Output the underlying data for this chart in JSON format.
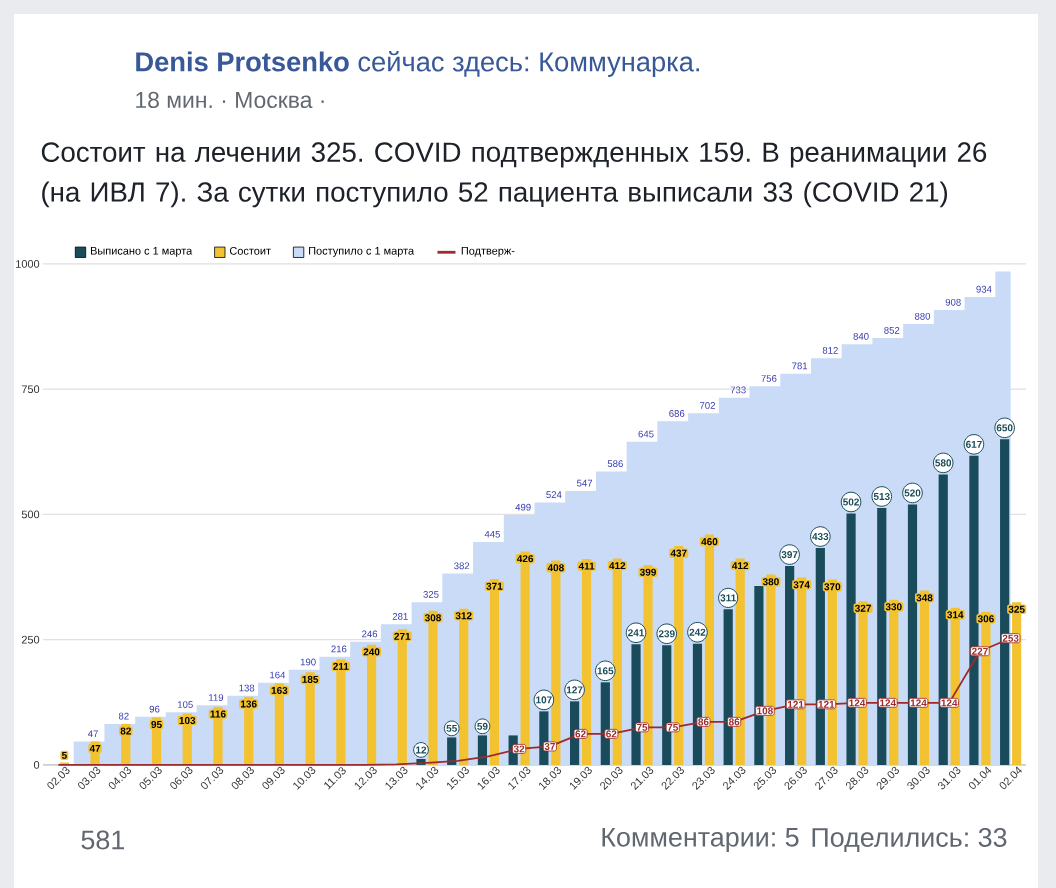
{
  "chart_data": {
    "type": "bar",
    "title": "Состоит на лечении 325. COVID подтвержденных 159. В реанимации 26 (на ИВЛ 7). За сутки поступило 52 пациента выписали 33 (COVID 21)",
    "annotations": [
      "**Denis Protsenko** сейчас здесь: Коммунарка.",
      "18 мин. · Москва ·",
      "581",
      "Комментарии: 5",
      "Поделились: 33"
    ],
    "categories": [
      "02.03",
      "03.03",
      "04.03",
      "05.03",
      "06.03",
      "07.03",
      "08.03",
      "09.03",
      "10.03",
      "11.03",
      "12.03",
      "13.03",
      "14.03",
      "15.03",
      "16.03",
      "17.03",
      "18.03",
      "19.03",
      "20.03",
      "21.03",
      "22.03",
      "23.03",
      "24.03",
      "25.03",
      "26.03",
      "27.03",
      "28.03",
      "29.03",
      "30.03",
      "31.03",
      "01.04",
      "02.04"
    ],
    "ylim": [
      0,
      1000
    ],
    "yticks": [
      0,
      250,
      500,
      750,
      1000
    ],
    "grid": "y",
    "legend": "top left",
    "series": [
      {
        "name": "Выписано с 1 марта",
        "color": "#194b5a",
        "values": [
          null,
          null,
          null,
          null,
          null,
          null,
          null,
          null,
          null,
          null,
          null,
          null,
          12,
          55,
          59,
          59,
          107,
          127,
          165,
          241,
          239,
          242,
          311,
          357,
          397,
          433,
          502,
          513,
          520,
          580,
          617,
          650
        ],
        "value_labels": [
          null,
          null,
          null,
          null,
          null,
          null,
          null,
          null,
          null,
          null,
          null,
          null,
          "12",
          "55",
          "59",
          null,
          "107",
          "127",
          "165",
          "241",
          "239",
          "242",
          "311",
          null,
          "397",
          "433",
          "502",
          "513",
          "520",
          "580",
          "617",
          "650"
        ]
      },
      {
        "name": "Состоит",
        "color": "#f2c230",
        "values": [
          5,
          47,
          82,
          95,
          103,
          116,
          136,
          163,
          185,
          211,
          240,
          271,
          308,
          312,
          371,
          426,
          408,
          411,
          412,
          399,
          437,
          460,
          412,
          380,
          374,
          370,
          327,
          330,
          348,
          314,
          306,
          325
        ],
        "value_labels": [
          "5",
          "47",
          "82",
          "95",
          "103",
          "116",
          "136",
          "163",
          "185",
          "211",
          "240",
          "271",
          "308",
          "312",
          "371",
          "426",
          "408",
          "411",
          "412",
          "399",
          "437",
          "460",
          "412",
          "380",
          "374",
          "370",
          "327",
          "330",
          "348",
          "314",
          "306",
          "325"
        ]
      },
      {
        "name": "Поступило с 1 марта",
        "type": "area",
        "color": "#c9dbf7",
        "values": [
          0,
          47,
          82,
          96,
          105,
          119,
          138,
          164,
          190,
          216,
          246,
          281,
          325,
          382,
          445,
          499,
          524,
          547,
          586,
          645,
          686,
          702,
          733,
          756,
          781,
          812,
          840,
          852,
          880,
          908,
          934,
          985
        ],
        "value_labels": [
          null,
          "47",
          "82",
          "96",
          "105",
          "119",
          "138",
          "164",
          "190",
          "216",
          "246",
          "281",
          "325",
          "382",
          "445",
          "499",
          "524",
          "547",
          "586",
          "645",
          "686",
          "702",
          "733",
          "756",
          "781",
          "812",
          "840",
          "852",
          "880",
          "908",
          "934",
          null
        ]
      },
      {
        "name": "Подтверж-",
        "type": "line",
        "color": "#9e2a2b",
        "values": [
          0,
          0,
          0,
          0,
          0,
          0,
          0,
          0,
          0,
          0,
          0,
          1,
          4,
          8,
          17,
          32,
          37,
          62,
          62,
          75,
          75,
          86,
          86,
          108,
          121,
          121,
          124,
          124,
          124,
          124,
          227,
          253
        ],
        "value_labels": [
          null,
          null,
          null,
          null,
          null,
          null,
          null,
          null,
          null,
          null,
          null,
          null,
          null,
          null,
          null,
          "32",
          "37",
          "62",
          "62",
          "75",
          "75",
          "86",
          "86",
          "108",
          "121",
          "121",
          "124",
          "124",
          "124",
          "124",
          "227",
          "253"
        ]
      }
    ]
  }
}
